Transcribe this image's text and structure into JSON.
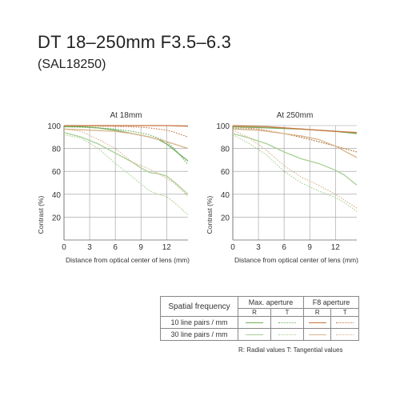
{
  "header": {
    "title": "DT 18–250mm F3.5–6.3",
    "subtitle": "(SAL18250)"
  },
  "colors": {
    "r10_max": "#6fae5b",
    "r30_max": "#a8d095",
    "r10_f8": "#c8743f",
    "r30_f8": "#d8b48c",
    "grid": "#9a9a9a",
    "text": "#333333"
  },
  "legend": {
    "spatial_frequency": "Spatial frequency",
    "max_aperture": "Max. aperture",
    "f8_aperture": "F8 aperture",
    "r": "R",
    "t": "T",
    "rows": [
      {
        "label": "10 line pairs / mm"
      },
      {
        "label": "30 line pairs / mm"
      }
    ],
    "footnote": "R: Radial values  T: Tangential values"
  },
  "chart_data": [
    {
      "type": "line",
      "title": "At 18mm",
      "xlabel": "Distance from optical center of lens (mm)",
      "ylabel": "Contrast (%)",
      "xlim": [
        0,
        14.5
      ],
      "ylim": [
        0,
        100
      ],
      "xticks": [
        "0",
        "3",
        "6",
        "9",
        "12"
      ],
      "yticks": [
        "20",
        "40",
        "60",
        "80",
        "100"
      ],
      "grid": true,
      "series": [
        {
          "id": "max10R",
          "color": "#6fae5b",
          "dash": false,
          "points": [
            [
              0,
              99
            ],
            [
              2,
              99
            ],
            [
              4,
              98
            ],
            [
              6,
              96
            ],
            [
              8,
              93
            ],
            [
              10,
              90
            ],
            [
              11,
              88
            ],
            [
              12,
              84
            ],
            [
              13,
              78
            ],
            [
              14.5,
              69
            ]
          ]
        },
        {
          "id": "max10T",
          "color": "#6fae5b",
          "dash": true,
          "points": [
            [
              0,
              99
            ],
            [
              2,
              98.5
            ],
            [
              4,
              98
            ],
            [
              6,
              97
            ],
            [
              8,
              95
            ],
            [
              10,
              92
            ],
            [
              12,
              86
            ],
            [
              13,
              79
            ],
            [
              14.5,
              66
            ]
          ]
        },
        {
          "id": "max30R",
          "color": "#a8d095",
          "dash": false,
          "points": [
            [
              0,
              94
            ],
            [
              2,
              90
            ],
            [
              4,
              84
            ],
            [
              6,
              76
            ],
            [
              8,
              68
            ],
            [
              9,
              63
            ],
            [
              10,
              59
            ],
            [
              11,
              58
            ],
            [
              12,
              56
            ],
            [
              13,
              50
            ],
            [
              14.5,
              40
            ]
          ]
        },
        {
          "id": "max30T",
          "color": "#a8d095",
          "dash": true,
          "points": [
            [
              0,
              92
            ],
            [
              2,
              89
            ],
            [
              4,
              80
            ],
            [
              6,
              67
            ],
            [
              8,
              55
            ],
            [
              9,
              49
            ],
            [
              10,
              43
            ],
            [
              11,
              40
            ],
            [
              12,
              38
            ],
            [
              13,
              32
            ],
            [
              14.5,
              22
            ]
          ]
        },
        {
          "id": "f810R",
          "color": "#c8743f",
          "dash": false,
          "points": [
            [
              0,
              100
            ],
            [
              4,
              100
            ],
            [
              8,
              100
            ],
            [
              12,
              100
            ],
            [
              14.5,
              99.5
            ]
          ]
        },
        {
          "id": "f810T",
          "color": "#c8743f",
          "dash": true,
          "points": [
            [
              0,
              100
            ],
            [
              4,
              99.5
            ],
            [
              8,
              99
            ],
            [
              10,
              98
            ],
            [
              12,
              96
            ],
            [
              13,
              94
            ],
            [
              14.5,
              90
            ]
          ]
        },
        {
          "id": "f830R",
          "color": "#d8b48c",
          "dash": false,
          "points": [
            [
              0,
              97
            ],
            [
              3,
              96
            ],
            [
              6,
              95
            ],
            [
              8,
              93
            ],
            [
              10,
              90
            ],
            [
              12,
              86
            ],
            [
              14.5,
              80
            ]
          ]
        },
        {
          "id": "f830T",
          "color": "#d8b48c",
          "dash": true,
          "points": [
            [
              0,
              97
            ],
            [
              2,
              95
            ],
            [
              4,
              88
            ],
            [
              6,
              80
            ],
            [
              8,
              68
            ],
            [
              10,
              62
            ],
            [
              12,
              54
            ],
            [
              13,
              49
            ],
            [
              14.5,
              38
            ]
          ]
        }
      ]
    },
    {
      "type": "line",
      "title": "At 250mm",
      "xlabel": "Distance from optical center of lens (mm)",
      "ylabel": "Contrast (%)",
      "xlim": [
        0,
        14.5
      ],
      "ylim": [
        0,
        100
      ],
      "xticks": [
        "0",
        "3",
        "6",
        "9",
        "12"
      ],
      "yticks": [
        "20",
        "40",
        "60",
        "80",
        "100"
      ],
      "grid": true,
      "series": [
        {
          "id": "max10R",
          "color": "#6fae5b",
          "dash": false,
          "points": [
            [
              0,
              99
            ],
            [
              4,
              98
            ],
            [
              8,
              97
            ],
            [
              12,
              95
            ],
            [
              14.5,
              93
            ]
          ]
        },
        {
          "id": "max10T",
          "color": "#6fae5b",
          "dash": true,
          "points": [
            [
              0,
              98
            ],
            [
              3,
              96
            ],
            [
              6,
              93
            ],
            [
              8,
              90
            ],
            [
              10,
              86
            ],
            [
              12,
              82
            ],
            [
              13,
              80
            ],
            [
              14.5,
              77
            ]
          ]
        },
        {
          "id": "max30R",
          "color": "#a8d095",
          "dash": false,
          "points": [
            [
              0,
              93
            ],
            [
              2,
              89
            ],
            [
              4,
              84
            ],
            [
              6,
              77
            ],
            [
              8,
              71
            ],
            [
              10,
              67
            ],
            [
              12,
              61
            ],
            [
              13,
              57
            ],
            [
              14.5,
              48
            ]
          ]
        },
        {
          "id": "max30T",
          "color": "#a8d095",
          "dash": true,
          "points": [
            [
              0,
              92
            ],
            [
              2,
              84
            ],
            [
              4,
              74
            ],
            [
              6,
              60
            ],
            [
              8,
              50
            ],
            [
              10,
              43
            ],
            [
              12,
              37
            ],
            [
              13,
              33
            ],
            [
              14.5,
              25
            ]
          ]
        },
        {
          "id": "f810R",
          "color": "#c8743f",
          "dash": false,
          "points": [
            [
              0,
              100
            ],
            [
              4,
              99
            ],
            [
              8,
              97
            ],
            [
              12,
              95
            ],
            [
              14.5,
              94
            ]
          ]
        },
        {
          "id": "f810T",
          "color": "#c8743f",
          "dash": true,
          "points": [
            [
              0,
              99
            ],
            [
              3,
              97
            ],
            [
              6,
              93
            ],
            [
              9,
              88
            ],
            [
              11,
              84
            ],
            [
              13,
              80
            ],
            [
              14.5,
              77
            ]
          ]
        },
        {
          "id": "f830R",
          "color": "#d8b48c",
          "dash": false,
          "points": [
            [
              0,
              97
            ],
            [
              3,
              96
            ],
            [
              6,
              93
            ],
            [
              8,
              91
            ],
            [
              10,
              88
            ],
            [
              12,
              82
            ],
            [
              14.5,
              72
            ]
          ]
        },
        {
          "id": "f830T",
          "color": "#d8b48c",
          "dash": true,
          "points": [
            [
              0,
              96
            ],
            [
              2,
              89
            ],
            [
              4,
              78
            ],
            [
              6,
              65
            ],
            [
              8,
              55
            ],
            [
              10,
              48
            ],
            [
              12,
              40
            ],
            [
              13,
              35
            ],
            [
              14.5,
              28
            ]
          ]
        }
      ]
    }
  ]
}
